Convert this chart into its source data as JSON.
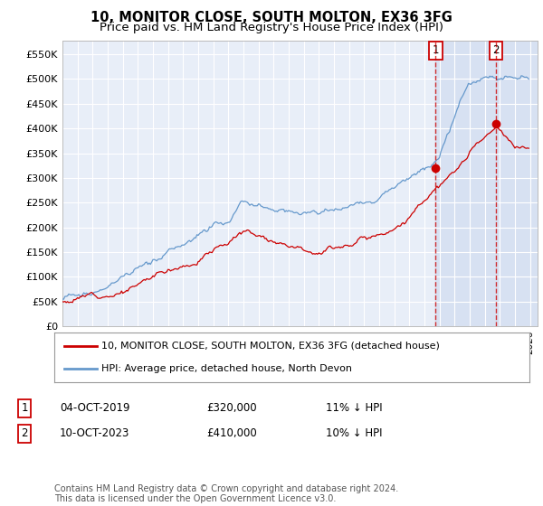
{
  "title": "10, MONITOR CLOSE, SOUTH MOLTON, EX36 3FG",
  "subtitle": "Price paid vs. HM Land Registry's House Price Index (HPI)",
  "ylabel_ticks": [
    "£0",
    "£50K",
    "£100K",
    "£150K",
    "£200K",
    "£250K",
    "£300K",
    "£350K",
    "£400K",
    "£450K",
    "£500K",
    "£550K"
  ],
  "ytick_values": [
    0,
    50000,
    100000,
    150000,
    200000,
    250000,
    300000,
    350000,
    400000,
    450000,
    500000,
    550000
  ],
  "ylim": [
    0,
    578000
  ],
  "xlim_start": 1995.0,
  "xlim_end": 2026.5,
  "sale1_x": 2019.75,
  "sale1_y": 320000,
  "sale2_x": 2023.75,
  "sale2_y": 410000,
  "hpi_color": "#6699cc",
  "price_color": "#cc0000",
  "vline_color": "#cc0000",
  "annotation_box_color": "#cc0000",
  "plot_bg_color": "#e8eef8",
  "shade_color": "#d0dcf0",
  "grid_color": "#ffffff",
  "legend_line1": "10, MONITOR CLOSE, SOUTH MOLTON, EX36 3FG (detached house)",
  "legend_line2": "HPI: Average price, detached house, North Devon",
  "table_row1": [
    "1",
    "04-OCT-2019",
    "£320,000",
    "11% ↓ HPI"
  ],
  "table_row2": [
    "2",
    "10-OCT-2023",
    "£410,000",
    "10% ↓ HPI"
  ],
  "footer": "Contains HM Land Registry data © Crown copyright and database right 2024.\nThis data is licensed under the Open Government Licence v3.0."
}
